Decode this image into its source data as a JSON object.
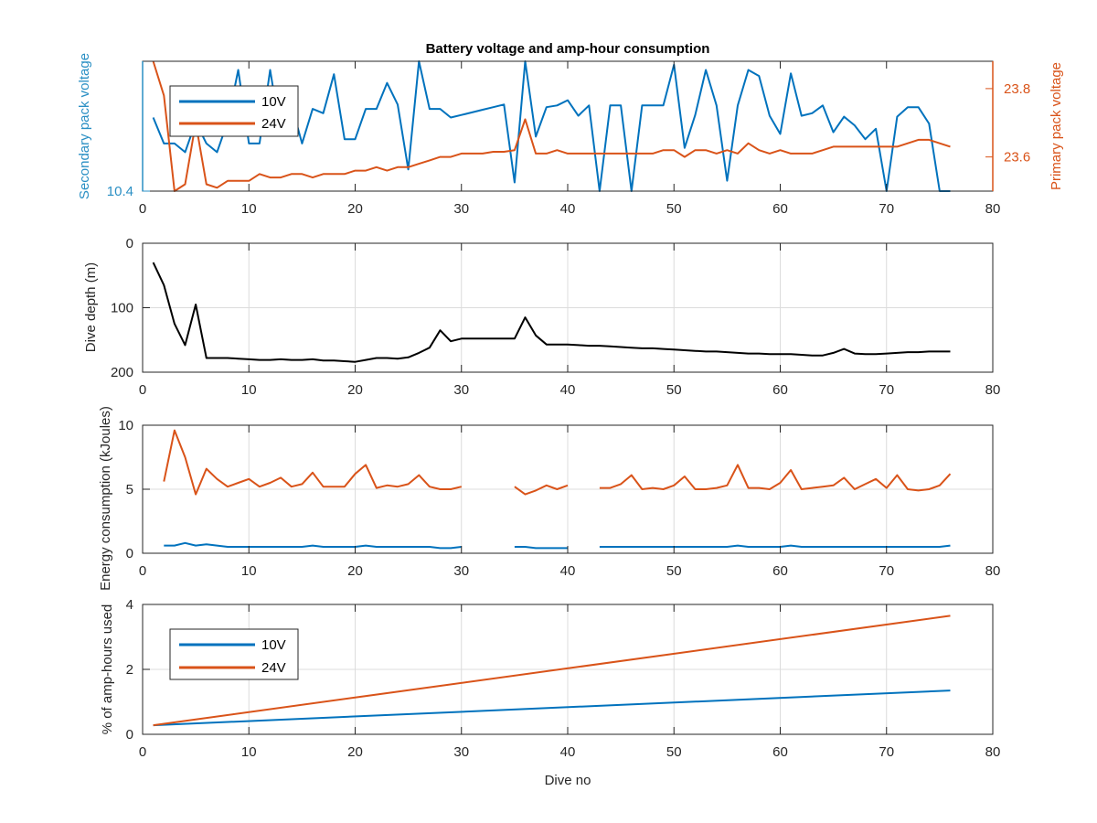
{
  "colors": {
    "blue": "#0072BD",
    "orange": "#D95319",
    "black": "#000000",
    "axis": "#262626",
    "grid": "#dcdcdc"
  },
  "chart_data": [
    {
      "type": "line",
      "title": "Battery voltage and amp-hour consumption",
      "xlabel": "",
      "xlim": [
        0,
        80
      ],
      "xticks": [
        0,
        10,
        20,
        30,
        40,
        50,
        60,
        70,
        80
      ],
      "ylabel": "Secondary pack voltage",
      "ylim": [
        10.4,
        10.55
      ],
      "yticks": [
        10.4
      ],
      "ylabel_right": "Primary pack voltage",
      "ylim_right": [
        23.5,
        23.88
      ],
      "yticks_right": [
        23.6,
        23.8
      ],
      "grid": false,
      "legend": "top-left",
      "series": [
        {
          "name": "10V",
          "axis": "left",
          "color": "blue",
          "x": [
            1,
            2,
            3,
            4,
            5,
            6,
            7,
            8,
            9,
            10,
            11,
            12,
            13,
            14,
            15,
            16,
            17,
            18,
            19,
            20,
            21,
            22,
            23,
            24,
            25,
            26,
            27,
            28,
            29,
            30,
            31,
            32,
            33,
            34,
            35,
            36,
            37,
            38,
            39,
            40,
            41,
            42,
            43,
            44,
            45,
            46,
            47,
            48,
            49,
            50,
            51,
            52,
            53,
            54,
            55,
            56,
            57,
            58,
            59,
            60,
            61,
            62,
            63,
            64,
            65,
            66,
            67,
            68,
            69,
            70,
            71,
            72,
            73,
            74,
            75,
            76
          ],
          "values": [
            10.485,
            10.455,
            10.455,
            10.445,
            10.48,
            10.455,
            10.445,
            10.48,
            10.54,
            10.455,
            10.455,
            10.54,
            10.465,
            10.5,
            10.455,
            10.495,
            10.49,
            10.535,
            10.46,
            10.46,
            10.495,
            10.495,
            10.525,
            10.5,
            10.425,
            10.55,
            10.495,
            10.495,
            10.485,
            10.488,
            10.491,
            10.494,
            10.497,
            10.5,
            10.41,
            10.55,
            10.463,
            10.497,
            10.499,
            10.505,
            10.487,
            10.499,
            10.4,
            10.499,
            10.499,
            10.4,
            10.499,
            10.499,
            10.499,
            10.546,
            10.45,
            10.488,
            10.54,
            10.499,
            10.412,
            10.499,
            10.54,
            10.533,
            10.487,
            10.466,
            10.536,
            10.487,
            10.49,
            10.499,
            10.468,
            10.486,
            10.476,
            10.46,
            10.472,
            10.4,
            10.486,
            10.497,
            10.497,
            10.478,
            10.4,
            10.4
          ]
        },
        {
          "name": "24V",
          "axis": "right",
          "color": "orange",
          "x": [
            1,
            2,
            3,
            4,
            5,
            6,
            7,
            8,
            9,
            10,
            11,
            12,
            13,
            14,
            15,
            16,
            17,
            18,
            19,
            20,
            21,
            22,
            23,
            24,
            25,
            26,
            27,
            28,
            29,
            30,
            31,
            32,
            33,
            34,
            35,
            36,
            37,
            38,
            39,
            40,
            41,
            42,
            43,
            44,
            45,
            46,
            47,
            48,
            49,
            50,
            51,
            52,
            53,
            54,
            55,
            56,
            57,
            58,
            59,
            60,
            61,
            62,
            63,
            64,
            65,
            66,
            67,
            68,
            69,
            70,
            71,
            72,
            73,
            74,
            75,
            76
          ],
          "values": [
            23.88,
            23.78,
            23.5,
            23.52,
            23.7,
            23.52,
            23.51,
            23.53,
            23.53,
            23.53,
            23.55,
            23.54,
            23.54,
            23.55,
            23.55,
            23.54,
            23.55,
            23.55,
            23.55,
            23.56,
            23.56,
            23.57,
            23.56,
            23.57,
            23.57,
            23.58,
            23.59,
            23.6,
            23.6,
            23.61,
            23.61,
            23.61,
            23.615,
            23.615,
            23.62,
            23.71,
            23.61,
            23.61,
            23.62,
            23.61,
            23.61,
            23.61,
            23.61,
            23.61,
            23.61,
            23.61,
            23.61,
            23.61,
            23.62,
            23.62,
            23.6,
            23.62,
            23.62,
            23.61,
            23.62,
            23.61,
            23.64,
            23.62,
            23.61,
            23.62,
            23.61,
            23.61,
            23.61,
            23.62,
            23.63,
            23.63,
            23.63,
            23.63,
            23.63,
            23.63,
            23.63,
            23.64,
            23.65,
            23.65,
            23.64,
            23.63
          ]
        }
      ]
    },
    {
      "type": "line",
      "title": "",
      "xlabel": "",
      "xlim": [
        0,
        80
      ],
      "xticks": [
        0,
        10,
        20,
        30,
        40,
        50,
        60,
        70,
        80
      ],
      "ylabel": "Dive depth (m)",
      "ylim": [
        0,
        200
      ],
      "yticks": [
        0,
        100,
        200
      ],
      "y_reversed": true,
      "grid": true,
      "series": [
        {
          "color": "black",
          "x": [
            1,
            2,
            3,
            4,
            5,
            6,
            7,
            8,
            9,
            10,
            11,
            12,
            13,
            14,
            15,
            16,
            17,
            18,
            19,
            20,
            21,
            22,
            23,
            24,
            25,
            26,
            27,
            28,
            29,
            30,
            31,
            32,
            33,
            34,
            35,
            36,
            37,
            38,
            39,
            40,
            41,
            42,
            43,
            44,
            45,
            46,
            47,
            48,
            49,
            50,
            51,
            52,
            53,
            54,
            55,
            56,
            57,
            58,
            59,
            60,
            61,
            62,
            63,
            64,
            65,
            66,
            67,
            68,
            69,
            70,
            71,
            72,
            73,
            74,
            75,
            76
          ],
          "values": [
            30,
            65,
            125,
            158,
            95,
            178,
            178,
            178,
            179,
            180,
            181,
            181,
            180,
            181,
            181,
            180,
            182,
            182,
            183,
            184,
            181,
            178,
            178,
            179,
            177,
            170,
            162,
            135,
            152,
            148,
            148,
            148,
            148,
            148,
            148,
            115,
            143,
            157,
            157,
            157,
            158,
            159,
            159,
            160,
            161,
            162,
            163,
            163,
            164,
            165,
            166,
            167,
            168,
            168,
            169,
            170,
            171,
            171,
            172,
            172,
            172,
            173,
            174,
            174,
            170,
            164,
            171,
            172,
            172,
            171,
            170,
            169,
            169,
            168,
            168,
            168
          ]
        }
      ]
    },
    {
      "type": "line",
      "title": "",
      "xlabel": "",
      "xlim": [
        0,
        80
      ],
      "xticks": [
        0,
        10,
        20,
        30,
        40,
        50,
        60,
        70,
        80
      ],
      "ylabel": "Energy consumption (kJoules)",
      "ylim": [
        0,
        10
      ],
      "yticks": [
        0,
        5,
        10
      ],
      "grid": true,
      "series": [
        {
          "color": "orange",
          "x": [
            2,
            3,
            4,
            5,
            6,
            7,
            8,
            9,
            10,
            11,
            12,
            13,
            14,
            15,
            16,
            17,
            18,
            19,
            20,
            21,
            22,
            23,
            24,
            25,
            26,
            27,
            28,
            29,
            30,
            null,
            35,
            36,
            37,
            38,
            39,
            40,
            null,
            43,
            44,
            45,
            46,
            47,
            48,
            49,
            50,
            51,
            52,
            53,
            54,
            55,
            56,
            57,
            58,
            59,
            60,
            61,
            62,
            63,
            64,
            65,
            66,
            67,
            68,
            69,
            70,
            71,
            72,
            73,
            74,
            75,
            76
          ],
          "values": [
            5.6,
            9.6,
            7.5,
            4.6,
            6.6,
            5.8,
            5.2,
            5.5,
            5.8,
            5.2,
            5.5,
            5.9,
            5.2,
            5.4,
            6.3,
            5.2,
            5.2,
            5.2,
            6.2,
            6.9,
            5.1,
            5.3,
            5.2,
            5.4,
            6.1,
            5.2,
            5.0,
            5.0,
            5.2,
            null,
            5.2,
            4.6,
            4.9,
            5.3,
            5.0,
            5.3,
            null,
            5.1,
            5.1,
            5.4,
            6.1,
            5.0,
            5.1,
            5.0,
            5.3,
            6.0,
            5.0,
            5.0,
            5.1,
            5.3,
            6.9,
            5.1,
            5.1,
            5.0,
            5.5,
            6.5,
            5.0,
            5.1,
            5.2,
            5.3,
            5.9,
            5.0,
            5.4,
            5.8,
            5.1,
            6.1,
            5.0,
            4.9,
            5.0,
            5.3,
            6.2
          ]
        },
        {
          "color": "blue",
          "x": [
            2,
            3,
            4,
            5,
            6,
            7,
            8,
            9,
            10,
            11,
            12,
            13,
            14,
            15,
            16,
            17,
            18,
            19,
            20,
            21,
            22,
            23,
            24,
            25,
            26,
            27,
            28,
            29,
            30,
            null,
            35,
            36,
            37,
            38,
            39,
            40,
            null,
            43,
            44,
            45,
            46,
            47,
            48,
            49,
            50,
            51,
            52,
            53,
            54,
            55,
            56,
            57,
            58,
            59,
            60,
            61,
            62,
            63,
            64,
            65,
            66,
            67,
            68,
            69,
            70,
            71,
            72,
            73,
            74,
            75,
            76
          ],
          "values": [
            0.6,
            0.6,
            0.8,
            0.6,
            0.7,
            0.6,
            0.5,
            0.5,
            0.5,
            0.5,
            0.5,
            0.5,
            0.5,
            0.5,
            0.6,
            0.5,
            0.5,
            0.5,
            0.5,
            0.6,
            0.5,
            0.5,
            0.5,
            0.5,
            0.5,
            0.5,
            0.4,
            0.4,
            0.5,
            null,
            0.5,
            0.5,
            0.4,
            0.4,
            0.4,
            0.4,
            null,
            0.5,
            0.5,
            0.5,
            0.5,
            0.5,
            0.5,
            0.5,
            0.5,
            0.5,
            0.5,
            0.5,
            0.5,
            0.5,
            0.6,
            0.5,
            0.5,
            0.5,
            0.5,
            0.6,
            0.5,
            0.5,
            0.5,
            0.5,
            0.5,
            0.5,
            0.5,
            0.5,
            0.5,
            0.5,
            0.5,
            0.5,
            0.5,
            0.5,
            0.6
          ]
        }
      ]
    },
    {
      "type": "line",
      "title": "",
      "xlabel": "Dive no",
      "xlim": [
        0,
        80
      ],
      "xticks": [
        0,
        10,
        20,
        30,
        40,
        50,
        60,
        70,
        80
      ],
      "ylabel": "% of amp-hours used",
      "ylim": [
        0,
        4
      ],
      "yticks": [
        0,
        2,
        4
      ],
      "grid": true,
      "legend": "top-left",
      "series": [
        {
          "name": "10V",
          "color": "blue",
          "x": [
            1,
            76
          ],
          "values": [
            0.28,
            1.35
          ]
        },
        {
          "name": "24V",
          "color": "orange",
          "x": [
            1,
            76
          ],
          "values": [
            0.28,
            3.65
          ]
        }
      ]
    }
  ]
}
